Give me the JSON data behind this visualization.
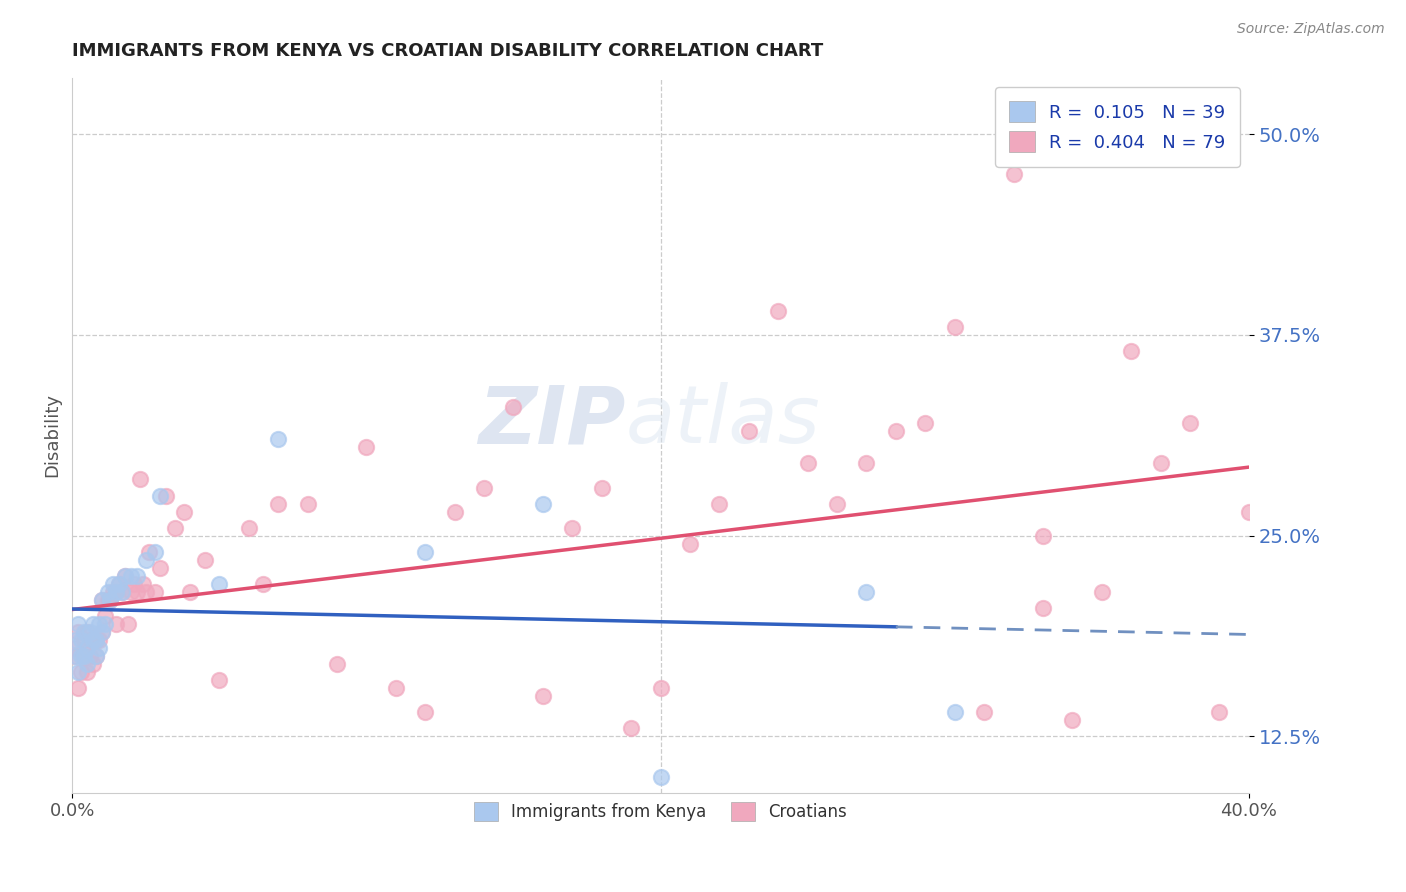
{
  "title": "IMMIGRANTS FROM KENYA VS CROATIAN DISABILITY CORRELATION CHART",
  "source": "Source: ZipAtlas.com",
  "xlabel": "",
  "ylabel": "Disability",
  "xlim": [
    0.0,
    0.4
  ],
  "ylim": [
    0.09,
    0.535
  ],
  "x_ticks": [
    0.0,
    0.4
  ],
  "x_tick_labels": [
    "0.0%",
    "40.0%"
  ],
  "y_ticks": [
    0.125,
    0.25,
    0.375,
    0.5
  ],
  "y_tick_labels": [
    "12.5%",
    "25.0%",
    "37.5%",
    "50.0%"
  ],
  "blue_color": "#aac8ee",
  "pink_color": "#f0a8be",
  "blue_line_color": "#3060c0",
  "pink_line_color": "#e05070",
  "dash_line_color": "#7090c0",
  "R_blue": 0.105,
  "N_blue": 39,
  "R_pink": 0.404,
  "N_pink": 79,
  "legend_label_blue": "Immigrants from Kenya",
  "legend_label_pink": "Croatians",
  "watermark_zip": "ZIP",
  "watermark_atlas": "atlas",
  "blue_scatter_x": [
    0.001,
    0.001,
    0.002,
    0.002,
    0.003,
    0.003,
    0.004,
    0.004,
    0.005,
    0.005,
    0.006,
    0.007,
    0.007,
    0.008,
    0.008,
    0.009,
    0.009,
    0.01,
    0.01,
    0.011,
    0.012,
    0.013,
    0.014,
    0.015,
    0.016,
    0.017,
    0.018,
    0.02,
    0.022,
    0.025,
    0.028,
    0.03,
    0.05,
    0.07,
    0.12,
    0.16,
    0.2,
    0.27,
    0.3
  ],
  "blue_scatter_y": [
    0.175,
    0.185,
    0.165,
    0.195,
    0.185,
    0.175,
    0.19,
    0.175,
    0.18,
    0.17,
    0.19,
    0.185,
    0.195,
    0.185,
    0.175,
    0.195,
    0.18,
    0.19,
    0.21,
    0.195,
    0.215,
    0.21,
    0.22,
    0.215,
    0.22,
    0.215,
    0.225,
    0.225,
    0.225,
    0.235,
    0.24,
    0.275,
    0.22,
    0.31,
    0.24,
    0.27,
    0.1,
    0.215,
    0.14
  ],
  "pink_scatter_x": [
    0.001,
    0.001,
    0.002,
    0.002,
    0.003,
    0.004,
    0.004,
    0.005,
    0.005,
    0.006,
    0.006,
    0.007,
    0.008,
    0.008,
    0.009,
    0.01,
    0.01,
    0.011,
    0.012,
    0.013,
    0.014,
    0.015,
    0.015,
    0.016,
    0.017,
    0.018,
    0.019,
    0.02,
    0.021,
    0.022,
    0.023,
    0.024,
    0.025,
    0.026,
    0.028,
    0.03,
    0.032,
    0.035,
    0.038,
    0.04,
    0.045,
    0.05,
    0.06,
    0.065,
    0.07,
    0.08,
    0.09,
    0.1,
    0.11,
    0.12,
    0.13,
    0.14,
    0.15,
    0.16,
    0.17,
    0.18,
    0.19,
    0.2,
    0.21,
    0.22,
    0.23,
    0.24,
    0.25,
    0.26,
    0.27,
    0.28,
    0.3,
    0.32,
    0.33,
    0.34,
    0.35,
    0.36,
    0.37,
    0.38,
    0.39,
    0.4,
    0.29,
    0.31,
    0.33
  ],
  "pink_scatter_y": [
    0.18,
    0.175,
    0.155,
    0.19,
    0.165,
    0.185,
    0.175,
    0.165,
    0.19,
    0.175,
    0.185,
    0.17,
    0.185,
    0.175,
    0.185,
    0.19,
    0.21,
    0.2,
    0.21,
    0.21,
    0.215,
    0.195,
    0.215,
    0.22,
    0.215,
    0.225,
    0.195,
    0.215,
    0.22,
    0.215,
    0.285,
    0.22,
    0.215,
    0.24,
    0.215,
    0.23,
    0.275,
    0.255,
    0.265,
    0.215,
    0.235,
    0.16,
    0.255,
    0.22,
    0.27,
    0.27,
    0.17,
    0.305,
    0.155,
    0.14,
    0.265,
    0.28,
    0.33,
    0.15,
    0.255,
    0.28,
    0.13,
    0.155,
    0.245,
    0.27,
    0.315,
    0.39,
    0.295,
    0.27,
    0.295,
    0.315,
    0.38,
    0.475,
    0.205,
    0.135,
    0.215,
    0.365,
    0.295,
    0.32,
    0.14,
    0.265,
    0.32,
    0.14,
    0.25
  ]
}
